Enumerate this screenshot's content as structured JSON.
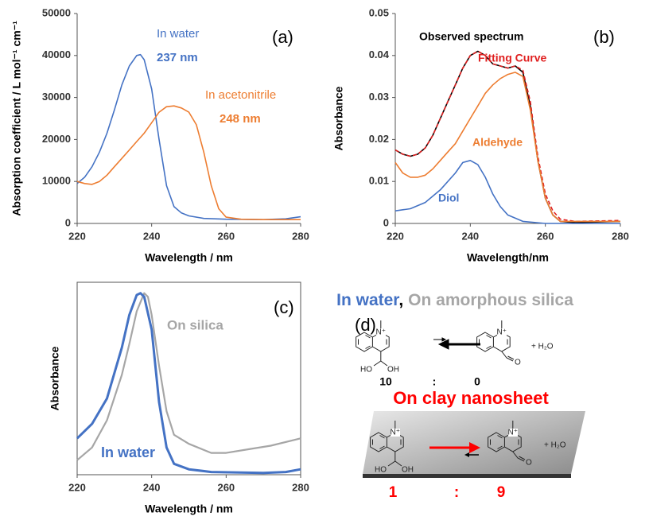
{
  "chart_data": [
    {
      "type": "line",
      "panel_label": "(a)",
      "x_label": "Wavelength / nm",
      "y_label": "Absorption coefficient / L mol⁻¹ cm⁻¹",
      "xlim": [
        220,
        280
      ],
      "xticks": [
        220,
        240,
        260,
        280
      ],
      "ylim": [
        0,
        50000
      ],
      "yticks": [
        0,
        10000,
        20000,
        30000,
        40000,
        50000
      ],
      "series": [
        {
          "name": "In water",
          "color": "#4472c4",
          "x": [
            220,
            222,
            224,
            226,
            228,
            230,
            232,
            234,
            236,
            237,
            238,
            240,
            242,
            244,
            246,
            248,
            250,
            254,
            260,
            270,
            276,
            280
          ],
          "values": [
            9500,
            11000,
            13500,
            17000,
            21500,
            27000,
            33000,
            37500,
            40000,
            40200,
            39000,
            32000,
            20000,
            9000,
            4000,
            2500,
            1800,
            1200,
            1000,
            900,
            1100,
            1600
          ]
        },
        {
          "name": "In acetonitrile",
          "color": "#ed7d31",
          "x": [
            220,
            222,
            224,
            226,
            228,
            230,
            232,
            234,
            236,
            238,
            240,
            242,
            244,
            246,
            248,
            250,
            252,
            254,
            256,
            258,
            260,
            264,
            270,
            280
          ],
          "values": [
            10000,
            9500,
            9300,
            10000,
            11500,
            13500,
            15500,
            17500,
            19500,
            21500,
            24000,
            26500,
            27800,
            28000,
            27500,
            26500,
            23500,
            17000,
            9000,
            3500,
            1500,
            1000,
            900,
            900
          ]
        }
      ],
      "annotations": [
        {
          "text": "237 nm",
          "color": "#4472c4"
        },
        {
          "text": "248 nm",
          "color": "#ed7d31"
        }
      ]
    },
    {
      "type": "line",
      "panel_label": "(b)",
      "x_label": "Wavelength/nm",
      "y_label": "Absorbance",
      "xlim": [
        220,
        280
      ],
      "xticks": [
        220,
        240,
        260,
        280
      ],
      "ylim": [
        0,
        0.05
      ],
      "yticks": [
        0,
        0.01,
        0.02,
        0.03,
        0.04,
        0.05
      ],
      "series": [
        {
          "name": "Observed spectrum",
          "color": "#000000",
          "x": [
            220,
            222,
            224,
            226,
            228,
            230,
            232,
            234,
            236,
            238,
            240,
            242,
            244,
            246,
            248,
            250,
            252,
            254,
            256,
            258,
            260,
            262,
            264,
            268,
            280
          ],
          "values": [
            0.0175,
            0.0165,
            0.016,
            0.0165,
            0.018,
            0.021,
            0.025,
            0.029,
            0.033,
            0.037,
            0.04,
            0.041,
            0.04,
            0.038,
            0.0375,
            0.037,
            0.0375,
            0.036,
            0.028,
            0.015,
            0.006,
            0.002,
            0.0005,
            0.0002,
            0.0005
          ]
        },
        {
          "name": "Fitting Curve",
          "color": "#e02020",
          "dashed": true,
          "x": [
            220,
            222,
            224,
            226,
            228,
            230,
            232,
            234,
            236,
            238,
            240,
            242,
            244,
            246,
            248,
            250,
            252,
            254,
            256,
            258,
            260,
            262,
            264,
            268,
            280
          ],
          "values": [
            0.0175,
            0.0165,
            0.016,
            0.0165,
            0.018,
            0.021,
            0.025,
            0.029,
            0.033,
            0.037,
            0.04,
            0.041,
            0.04,
            0.038,
            0.0375,
            0.037,
            0.0375,
            0.0365,
            0.029,
            0.016,
            0.007,
            0.003,
            0.001,
            0.0005,
            0.0007
          ]
        },
        {
          "name": "Aldehyde",
          "color": "#ed7d31",
          "x": [
            220,
            222,
            224,
            226,
            228,
            230,
            232,
            234,
            236,
            238,
            240,
            242,
            244,
            246,
            248,
            250,
            252,
            254,
            256,
            258,
            260,
            262,
            264,
            280
          ],
          "values": [
            0.0145,
            0.012,
            0.011,
            0.011,
            0.0115,
            0.013,
            0.015,
            0.017,
            0.019,
            0.022,
            0.025,
            0.028,
            0.031,
            0.033,
            0.0345,
            0.0355,
            0.036,
            0.035,
            0.027,
            0.015,
            0.006,
            0.002,
            0.0005,
            0.0005
          ]
        },
        {
          "name": "Diol",
          "color": "#4472c4",
          "x": [
            220,
            224,
            228,
            232,
            236,
            238,
            240,
            242,
            244,
            246,
            248,
            250,
            254,
            260,
            280
          ],
          "values": [
            0.003,
            0.0035,
            0.005,
            0.008,
            0.012,
            0.0145,
            0.015,
            0.014,
            0.011,
            0.007,
            0.004,
            0.002,
            0.0005,
            0,
            0
          ]
        }
      ]
    },
    {
      "type": "line",
      "panel_label": "(c)",
      "x_label": "Wavelength / nm",
      "y_label": "Absorbance",
      "xlim": [
        220,
        280
      ],
      "xticks": [
        220,
        240,
        260,
        280
      ],
      "ylim": [
        0,
        1.06
      ],
      "series": [
        {
          "name": "On silica",
          "color": "#a6a6a6",
          "x": [
            220,
            224,
            228,
            232,
            234,
            236,
            238,
            239,
            240,
            242,
            244,
            246,
            250,
            256,
            260,
            266,
            272,
            280
          ],
          "values": [
            0.08,
            0.15,
            0.3,
            0.55,
            0.72,
            0.9,
            1.0,
            0.98,
            0.88,
            0.6,
            0.35,
            0.22,
            0.17,
            0.12,
            0.12,
            0.14,
            0.16,
            0.2
          ]
        },
        {
          "name": "In water",
          "color": "#4472c4",
          "x": [
            220,
            224,
            228,
            232,
            234,
            236,
            237,
            238,
            240,
            242,
            244,
            246,
            250,
            256,
            270,
            276,
            280
          ],
          "values": [
            0.2,
            0.28,
            0.42,
            0.7,
            0.88,
            0.99,
            1.0,
            0.98,
            0.8,
            0.4,
            0.15,
            0.06,
            0.03,
            0.015,
            0.01,
            0.015,
            0.03
          ]
        }
      ]
    }
  ],
  "diagram": {
    "label": "(d)",
    "heading": {
      "water": "In water",
      "comma": ",",
      "silica": "On amorphous silica"
    },
    "atoms": {
      "n": "N⁺",
      "ho": "HO",
      "oh": "OH",
      "o": "O",
      "water": "+ H₂O"
    },
    "water_ratio": {
      "diol": 10,
      "sep": ":",
      "aldehyde": 0
    },
    "clay_title": "On clay nanosheet",
    "clay_ratio": {
      "diol": 1,
      "sep": ":",
      "aldehyde": 9
    }
  }
}
